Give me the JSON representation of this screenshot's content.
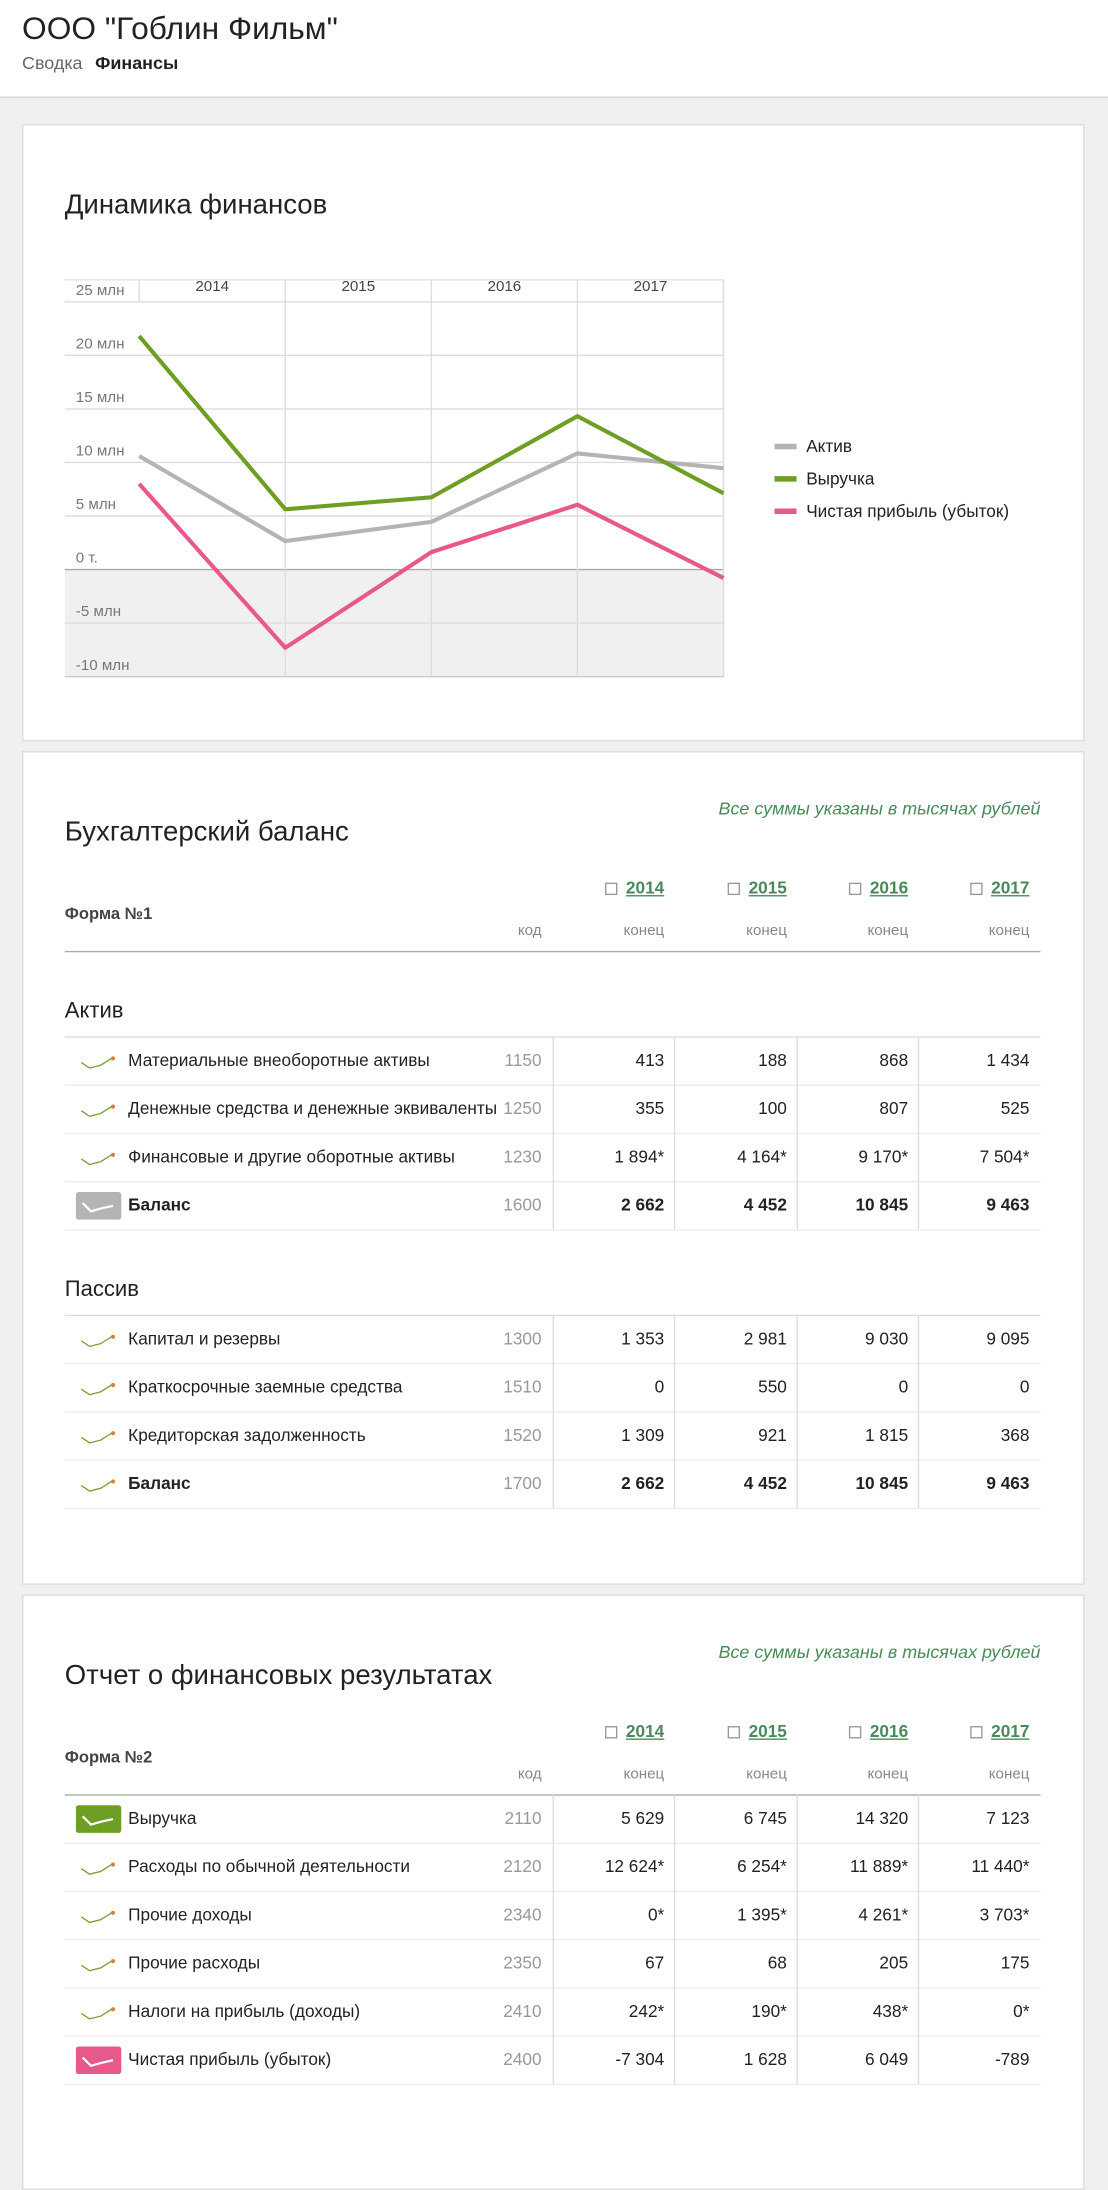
{
  "header": {
    "title": "ООО \"Гоблин Фильм\"",
    "tabs": [
      "Сводка",
      "Финансы"
    ]
  },
  "chart_data": {
    "type": "line",
    "title": "Динамика финансов",
    "categories": [
      null,
      "2014",
      "2015",
      "2016",
      "2017"
    ],
    "series": [
      {
        "name": "Актив",
        "color": "#b4b4b4",
        "values": [
          10.6,
          2.662,
          4.452,
          10.845,
          9.463
        ]
      },
      {
        "name": "Выручка",
        "color": "#6e9e23",
        "values": [
          21.8,
          5.629,
          6.745,
          14.32,
          7.123
        ]
      },
      {
        "name": "Чистая прибыль (убыток)",
        "color": "#e8588a",
        "values": [
          8,
          -7.304,
          1.628,
          6.049,
          -0.789
        ]
      }
    ],
    "ylim": [
      -10,
      25
    ],
    "yticks": [
      {
        "value": -10,
        "label": "-10 млн"
      },
      {
        "value": -5,
        "label": "-5 млн"
      },
      {
        "value": 0,
        "label": "0 т."
      },
      {
        "value": 5,
        "label": "5 млн"
      },
      {
        "value": 10,
        "label": "10 млн"
      },
      {
        "value": 15,
        "label": "15 млн"
      },
      {
        "value": 20,
        "label": "20 млн"
      },
      {
        "value": 25,
        "label": "25 млн"
      }
    ],
    "grid": true,
    "legend": "right"
  },
  "balance": {
    "title": "Бухгалтерский баланс",
    "note": "Все суммы указаны в тысячах рублей",
    "form": "Форма №1",
    "years": [
      "2014",
      "2015",
      "2016",
      "2017"
    ],
    "code_header": "код",
    "period_header": "конец",
    "sections": [
      {
        "title": "Актив",
        "rows": [
          {
            "label": "Материальные внеоборотные активы",
            "code": "1150",
            "values": [
              "413",
              "188",
              "868",
              "1 434"
            ]
          },
          {
            "label": "Денежные средства и денежные эквиваленты",
            "code": "1250",
            "values": [
              "355",
              "100",
              "807",
              "525"
            ]
          },
          {
            "label": "Финансовые и другие оборотные активы",
            "code": "1230",
            "values": [
              "1 894*",
              "4 164*",
              "9 170*",
              "7 504*"
            ]
          },
          {
            "label": "Баланс",
            "code": "1600",
            "values": [
              "2 662",
              "4 452",
              "10 845",
              "9 463"
            ],
            "bold": true,
            "highlight": "#b4b4b4"
          }
        ]
      },
      {
        "title": "Пассив",
        "rows": [
          {
            "label": "Капитал и резервы",
            "code": "1300",
            "values": [
              "1 353",
              "2 981",
              "9 030",
              "9 095"
            ]
          },
          {
            "label": "Краткосрочные заемные средства",
            "code": "1510",
            "values": [
              "0",
              "550",
              "0",
              "0"
            ]
          },
          {
            "label": "Кредиторская задолженность",
            "code": "1520",
            "values": [
              "1 309",
              "921",
              "1 815",
              "368"
            ]
          },
          {
            "label": "Баланс",
            "code": "1700",
            "values": [
              "2 662",
              "4 452",
              "10 845",
              "9 463"
            ],
            "bold": true
          }
        ]
      }
    ]
  },
  "results": {
    "title": "Отчет о финансовых результатах",
    "note": "Все суммы указаны в тысячах рублей",
    "form": "Форма №2",
    "years": [
      "2014",
      "2015",
      "2016",
      "2017"
    ],
    "code_header": "код",
    "period_header": "конец",
    "rows": [
      {
        "label": "Выручка",
        "code": "2110",
        "values": [
          "5 629",
          "6 745",
          "14 320",
          "7 123"
        ],
        "highlight": "#6e9e23"
      },
      {
        "label": "Расходы по обычной деятельности",
        "code": "2120",
        "values": [
          "12 624*",
          "6 254*",
          "11 889*",
          "11 440*"
        ]
      },
      {
        "label": "Прочие доходы",
        "code": "2340",
        "values": [
          "0*",
          "1 395*",
          "4 261*",
          "3 703*"
        ]
      },
      {
        "label": "Прочие расходы",
        "code": "2350",
        "values": [
          "67",
          "68",
          "205",
          "175"
        ]
      },
      {
        "label": "Налоги на прибыль (доходы)",
        "code": "2410",
        "values": [
          "242*",
          "190*",
          "438*",
          "0*"
        ]
      },
      {
        "label": "Чистая прибыль (убыток)",
        "code": "2400",
        "values": [
          "-7 304",
          "1 628",
          "6 049",
          "-789"
        ],
        "highlight": "#e8588a"
      }
    ]
  }
}
